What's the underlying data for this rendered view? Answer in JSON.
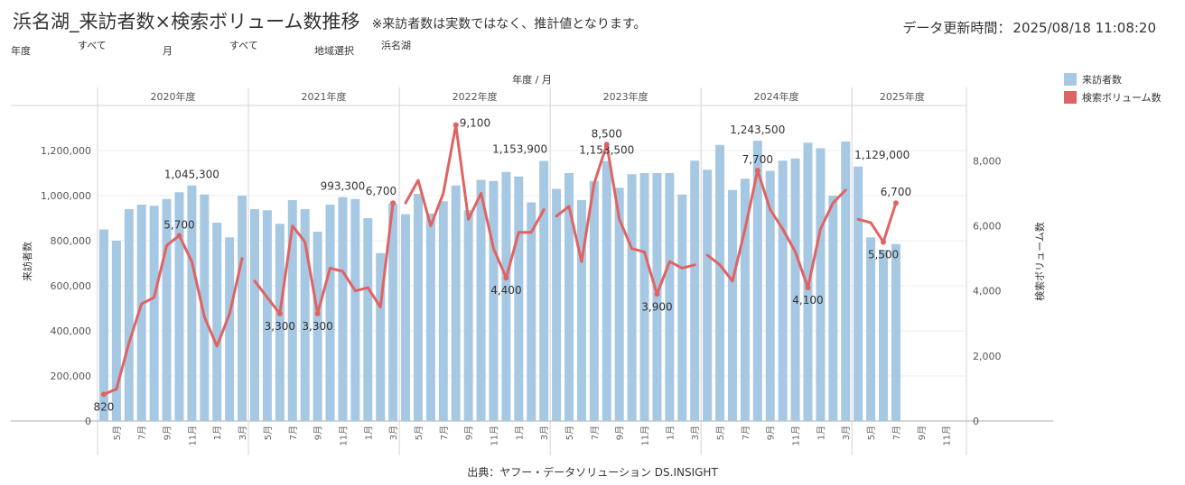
{
  "header": {
    "title": "浜名湖_来訪者数×検索ボリューム数推移",
    "note": "※来訪者数は実数ではなく、推計値となります。",
    "updated_label": "データ更新時間：",
    "updated_value": "2025/08/18 11:08:20"
  },
  "filters": [
    {
      "label": "年度",
      "value": "すべて"
    },
    {
      "label": "月",
      "value": "すべて"
    },
    {
      "label": "地域選択",
      "value": "浜名湖"
    }
  ],
  "legend": [
    {
      "name": "来訪者数",
      "color": "#a6c8e3"
    },
    {
      "name": "検索ボリューム数",
      "color": "#e06363"
    }
  ],
  "source": "出典：ヤフー・データソリューション DS.INSIGHT",
  "chart_data": {
    "type": "bar",
    "header_label": "年度 / 月",
    "left_axis_label": "来訪者数",
    "right_axis_label": "検索ボリューム数",
    "left_ylim": [
      0,
      1400000
    ],
    "right_ylim": [
      0,
      9700
    ],
    "left_ticks": [
      "0",
      "200,000",
      "400,000",
      "600,000",
      "800,000",
      "1,000,000",
      "1,200,000"
    ],
    "left_tick_values": [
      0,
      200000,
      400000,
      600000,
      800000,
      1000000,
      1200000
    ],
    "right_ticks": [
      "0",
      "2,000",
      "4,000",
      "6,000",
      "8,000"
    ],
    "right_tick_values": [
      0,
      2000,
      4000,
      6000,
      8000
    ],
    "month_tick_labels": [
      "5月",
      "7月",
      "9月",
      "11月",
      "1月",
      "3月"
    ],
    "future_month_tick_labels": [
      "9月",
      "11月"
    ],
    "years": [
      {
        "name": "2020年度",
        "visitors": [
          850000,
          800000,
          940000,
          960000,
          955000,
          985000,
          1015000,
          1045300,
          1005000,
          880000,
          815000,
          1000000
        ],
        "search": [
          820,
          980,
          2400,
          3600,
          3800,
          5400,
          5700,
          4900,
          3200,
          2300,
          3300,
          5000
        ]
      },
      {
        "name": "2021年度",
        "visitors": [
          940000,
          935000,
          875000,
          980000,
          940000,
          840000,
          960000,
          993300,
          985000,
          900000,
          745000,
          965000
        ],
        "search": [
          4300,
          3800,
          3300,
          6000,
          5500,
          3300,
          4700,
          4600,
          4000,
          4100,
          3500,
          6700
        ]
      },
      {
        "name": "2022年度",
        "visitors": [
          918000,
          1008000,
          920000,
          975000,
          1045000,
          935000,
          1070000,
          1065000,
          1105000,
          1085000,
          970000,
          1153900
        ],
        "search": [
          6700,
          7400,
          6000,
          7000,
          9100,
          6200,
          7000,
          5300,
          4400,
          5800,
          5800,
          6500
        ]
      },
      {
        "name": "2023年度",
        "visitors": [
          1030000,
          1100000,
          980000,
          1065000,
          1153500,
          1035000,
          1095000,
          1100000,
          1100000,
          1100000,
          1005000,
          1155000
        ],
        "search": [
          6300,
          6600,
          4900,
          7300,
          8500,
          6200,
          5300,
          5200,
          3900,
          4900,
          4700,
          4800
        ]
      },
      {
        "name": "2024年度",
        "visitors": [
          1115000,
          1225000,
          1025000,
          1075000,
          1243500,
          1110000,
          1155000,
          1165000,
          1235000,
          1210000,
          1000000,
          1240000
        ],
        "search": [
          5100,
          4800,
          4300,
          5900,
          7700,
          6500,
          5900,
          5200,
          4100,
          5900,
          6700,
          7100
        ]
      },
      {
        "name": "2025年度",
        "visitors": [
          1129000,
          815000,
          760000,
          785000,
          null,
          null,
          null,
          null
        ],
        "search": [
          6200,
          6100,
          5500,
          6700,
          null,
          null,
          null,
          null
        ]
      }
    ],
    "data_labels": [
      {
        "series": "visitors",
        "year": 0,
        "month": 7,
        "text": "1,045,300",
        "pos": "above"
      },
      {
        "series": "visitors",
        "year": 1,
        "month": 7,
        "text": "993,300",
        "pos": "above"
      },
      {
        "series": "visitors",
        "year": 2,
        "month": 11,
        "text": "1,153,900",
        "pos": "above-left"
      },
      {
        "series": "visitors",
        "year": 3,
        "month": 4,
        "text": "1,153,500",
        "pos": "above"
      },
      {
        "series": "visitors",
        "year": 4,
        "month": 4,
        "text": "1,243,500",
        "pos": "above"
      },
      {
        "series": "visitors",
        "year": 5,
        "month": 0,
        "text": "1,129,000",
        "pos": "above-right"
      },
      {
        "series": "search",
        "year": 0,
        "month": 0,
        "text": "820",
        "pos": "below"
      },
      {
        "series": "search",
        "year": 0,
        "month": 6,
        "text": "5,700",
        "pos": "above"
      },
      {
        "series": "search",
        "year": 1,
        "month": 2,
        "text": "3,300",
        "pos": "below"
      },
      {
        "series": "search",
        "year": 1,
        "month": 5,
        "text": "3,300",
        "pos": "below"
      },
      {
        "series": "search",
        "year": 1,
        "month": 11,
        "text": "6,700",
        "pos": "above-left"
      },
      {
        "series": "search",
        "year": 2,
        "month": 4,
        "text": "9,100",
        "pos": "right"
      },
      {
        "series": "search",
        "year": 2,
        "month": 8,
        "text": "4,400",
        "pos": "below"
      },
      {
        "series": "search",
        "year": 3,
        "month": 4,
        "text": "8,500",
        "pos": "above"
      },
      {
        "series": "search",
        "year": 3,
        "month": 8,
        "text": "3,900",
        "pos": "below"
      },
      {
        "series": "search",
        "year": 4,
        "month": 4,
        "text": "7,700",
        "pos": "above"
      },
      {
        "series": "search",
        "year": 4,
        "month": 8,
        "text": "4,100",
        "pos": "below"
      },
      {
        "series": "search",
        "year": 5,
        "month": 2,
        "text": "5,500",
        "pos": "below"
      },
      {
        "series": "search",
        "year": 5,
        "month": 3,
        "text": "6,700",
        "pos": "above"
      }
    ]
  }
}
